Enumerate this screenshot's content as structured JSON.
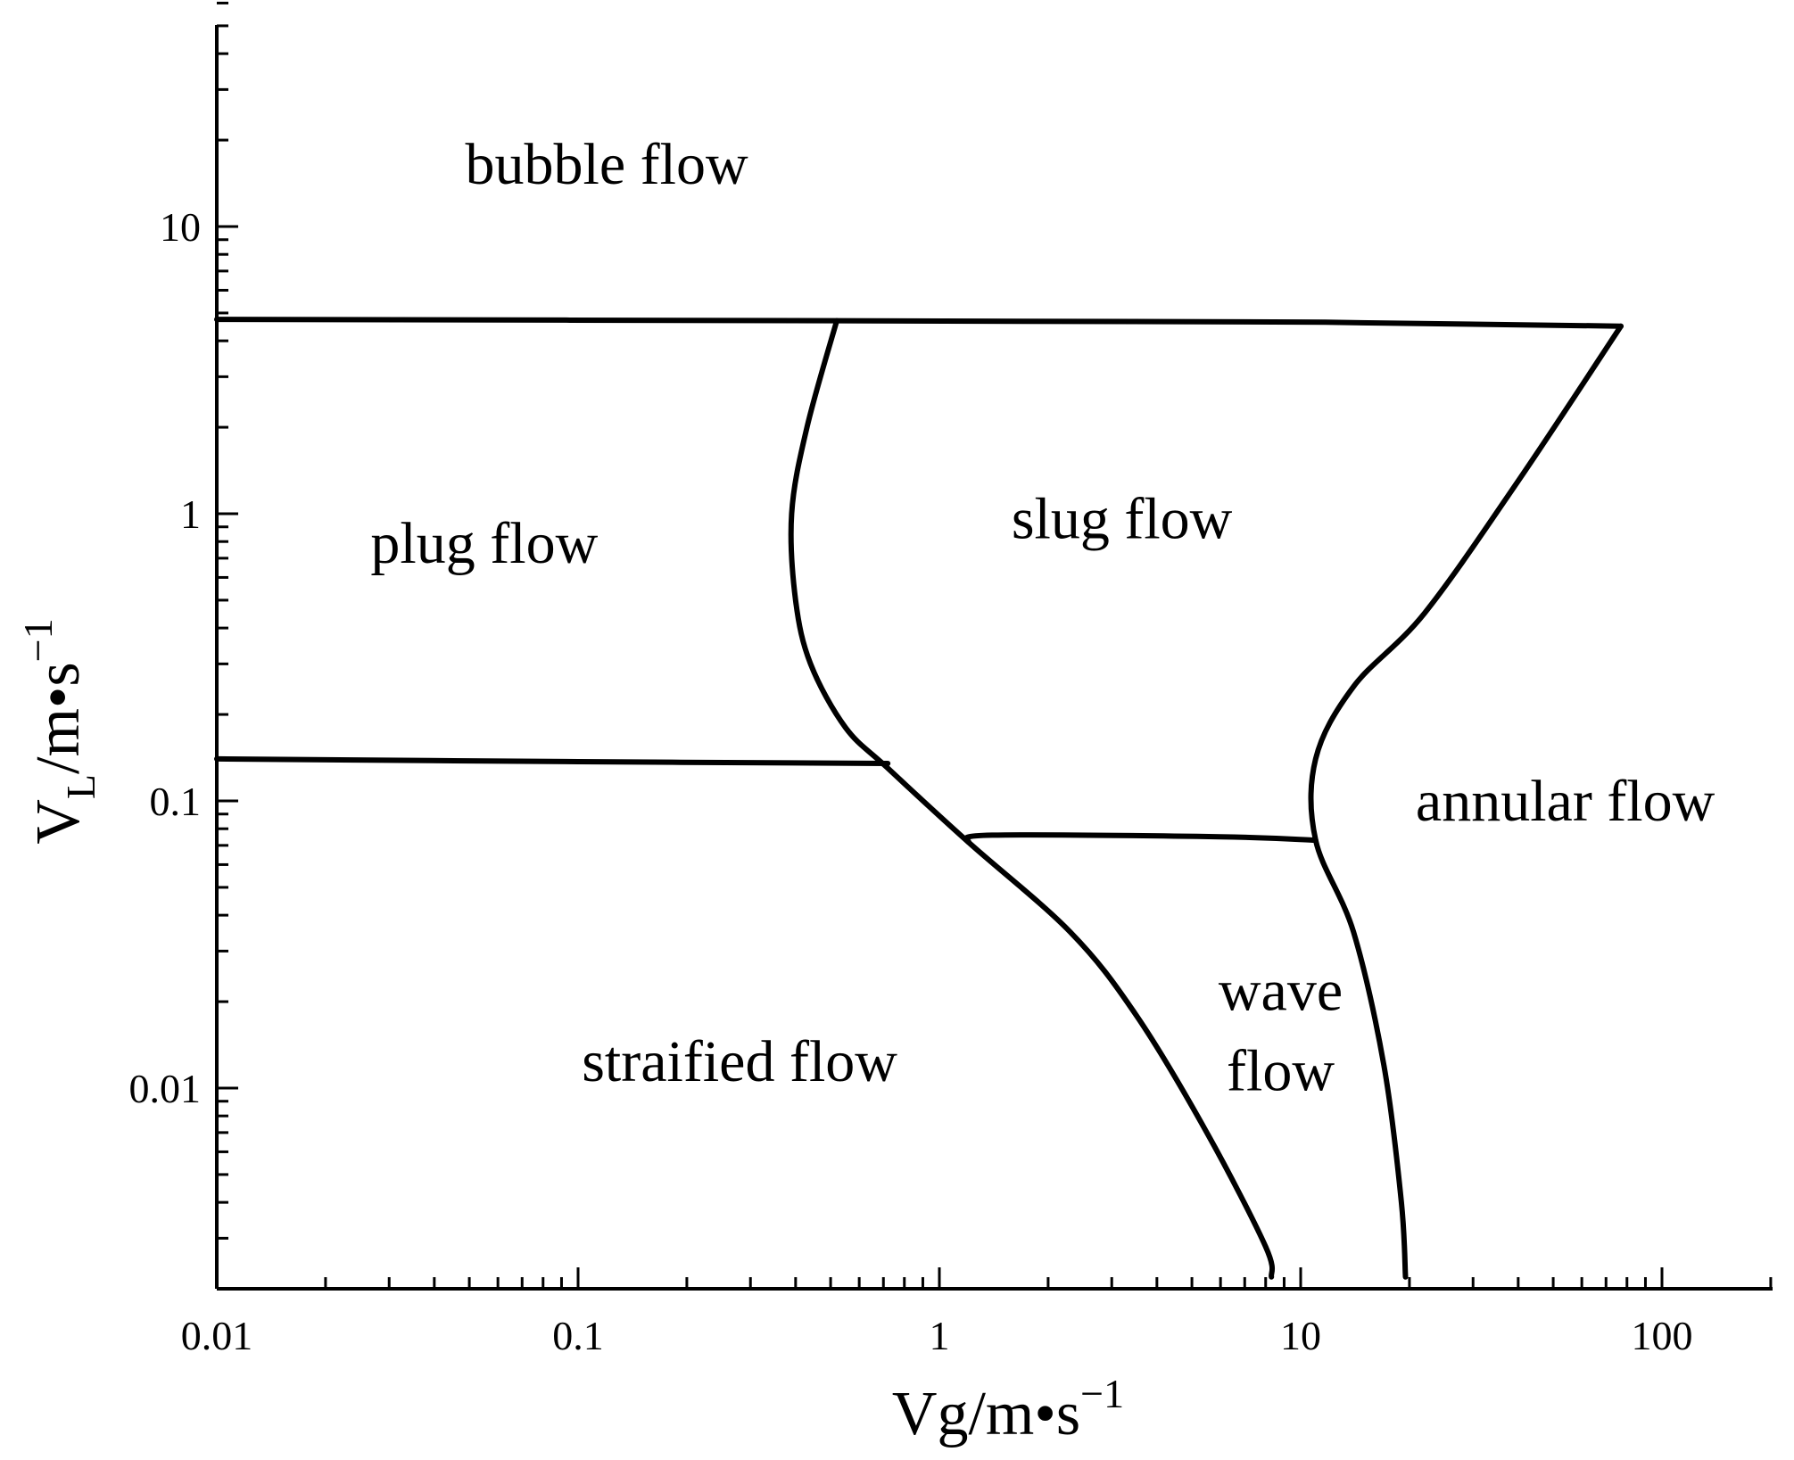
{
  "chart_data": {
    "type": "line",
    "subtype": "flow-regime-map",
    "title": "",
    "x_axis": {
      "scale": "log",
      "range": [
        0.01,
        200
      ],
      "tick_labels": [
        "0.01",
        "0.1",
        "1",
        "10",
        "100"
      ],
      "tick_values": [
        0.01,
        0.1,
        1,
        10,
        100
      ],
      "label_main": "Vg/m•s",
      "label_sup": "−1"
    },
    "y_axis": {
      "scale": "log",
      "range": [
        0.0022,
        60
      ],
      "tick_labels": [
        "0.01",
        "0.1",
        "1",
        "10"
      ],
      "tick_values": [
        0.01,
        0.1,
        1,
        10
      ],
      "label_main": "V",
      "label_sub": "L",
      "label_mid": "/m•s",
      "label_sup": "−1"
    },
    "grid": false,
    "legend": "none",
    "line_color": "#000000",
    "boundaries": [
      {
        "points": [
          [
            0.01,
            4.75
          ],
          [
            0.52,
            4.7
          ],
          [
            10,
            4.65
          ],
          [
            77,
            4.5
          ]
        ]
      },
      {
        "points": [
          [
            0.52,
            4.7
          ],
          [
            0.43,
            2.0
          ],
          [
            0.39,
            1.0
          ],
          [
            0.4,
            0.5
          ],
          [
            0.44,
            0.3
          ],
          [
            0.55,
            0.18
          ],
          [
            0.72,
            0.13
          ],
          [
            1.2,
            0.072
          ],
          [
            2.3,
            0.035
          ],
          [
            3.5,
            0.018
          ],
          [
            5.5,
            0.007
          ],
          [
            8.0,
            0.0028
          ],
          [
            8.3,
            0.0022
          ]
        ]
      },
      {
        "points": [
          [
            0.01,
            0.14
          ],
          [
            0.1,
            0.137
          ],
          [
            0.72,
            0.135
          ]
        ]
      },
      {
        "points": [
          [
            1.2,
            0.072
          ],
          [
            1.4,
            0.076
          ],
          [
            6.0,
            0.075
          ],
          [
            11,
            0.073
          ]
        ]
      },
      {
        "points": [
          [
            77,
            4.5
          ],
          [
            40,
            1.3
          ],
          [
            22,
            0.45
          ],
          [
            14,
            0.25
          ],
          [
            11,
            0.14
          ],
          [
            11,
            0.073
          ],
          [
            14,
            0.035
          ],
          [
            17,
            0.012
          ],
          [
            19,
            0.004
          ],
          [
            19.5,
            0.0022
          ]
        ]
      }
    ],
    "regions": [
      {
        "label": "bubble flow",
        "x": 0.12,
        "y": 16.5
      },
      {
        "label": "plug flow",
        "x": 0.055,
        "y": 0.79
      },
      {
        "label": "slug flow",
        "x": 3.2,
        "y": 0.96
      },
      {
        "label": "annular flow",
        "x": 54,
        "y": 0.1
      },
      {
        "label": "wave",
        "x": 8.8,
        "y": 0.0219
      },
      {
        "label": "flow",
        "x": 8.8,
        "y": 0.0115
      },
      {
        "label": "straified flow",
        "x": 0.28,
        "y": 0.0124
      }
    ]
  }
}
